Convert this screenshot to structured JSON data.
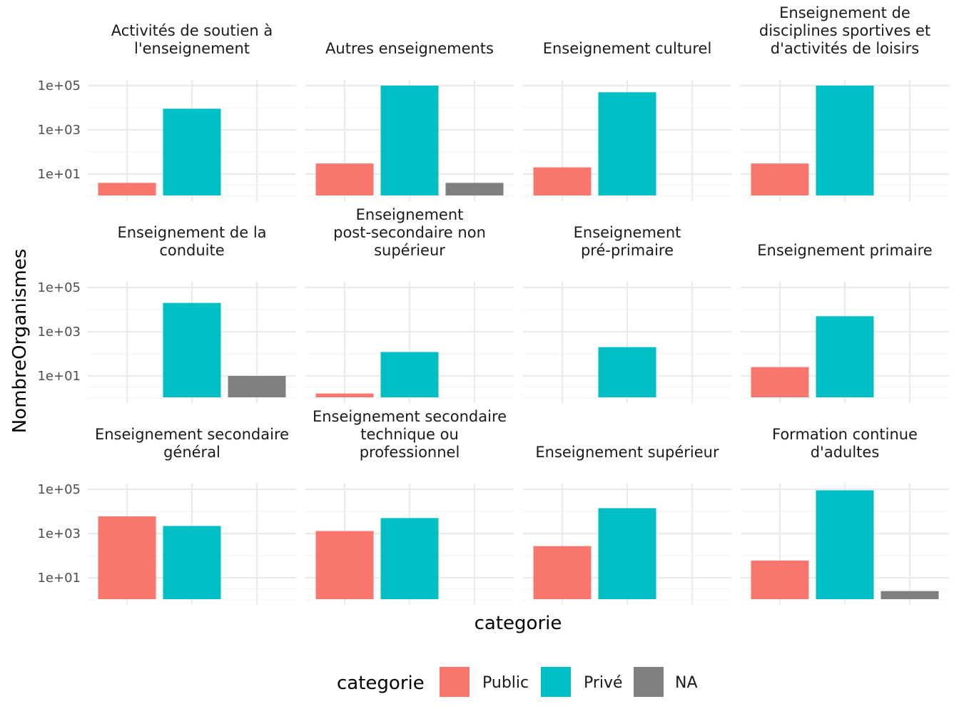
{
  "chart_data": {
    "type": "bar",
    "facet_type": "wrap",
    "ncol": 4,
    "xlabel": "categorie",
    "ylabel": "NombreOrganismes",
    "y_scale": "log10",
    "y_ticks": [
      "1e+01",
      "1e+03",
      "1e+05"
    ],
    "y_tick_values": [
      10,
      1000,
      100000
    ],
    "ylim": [
      1,
      100000
    ],
    "grid": true,
    "x_tick_labels_shown": false,
    "categories": [
      "Public",
      "Privé",
      "NA"
    ],
    "legend": {
      "title": "categorie",
      "position": "bottom",
      "entries": [
        {
          "label": "Public",
          "color": "#F8766D"
        },
        {
          "label": "Privé",
          "color": "#00BFC4"
        },
        {
          "label": "NA",
          "color": "#7F7F7F"
        }
      ]
    },
    "panels": [
      {
        "title_lines": [
          "Activités de soutien à",
          "l'enseignement"
        ],
        "values": [
          4,
          9000,
          null
        ]
      },
      {
        "title_lines": [
          "Autres enseignements"
        ],
        "values": [
          30,
          100000,
          4
        ]
      },
      {
        "title_lines": [
          "Enseignement culturel"
        ],
        "values": [
          20,
          50000,
          null
        ]
      },
      {
        "title_lines": [
          "Enseignement de",
          "disciplines sportives et",
          "d'activités de loisirs"
        ],
        "values": [
          30,
          100000,
          null
        ]
      },
      {
        "title_lines": [
          "Enseignement de la",
          "conduite"
        ],
        "values": [
          null,
          20000,
          10
        ]
      },
      {
        "title_lines": [
          "Enseignement",
          "post-secondaire non",
          "supérieur"
        ],
        "values": [
          1.6,
          120,
          null
        ]
      },
      {
        "title_lines": [
          "Enseignement",
          "pré-primaire"
        ],
        "values": [
          null,
          200,
          null
        ]
      },
      {
        "title_lines": [
          "Enseignement primaire"
        ],
        "values": [
          25,
          5000,
          null
        ]
      },
      {
        "title_lines": [
          "Enseignement secondaire",
          "général"
        ],
        "values": [
          6000,
          2200,
          null
        ]
      },
      {
        "title_lines": [
          "Enseignement secondaire",
          "technique ou",
          "professionnel"
        ],
        "values": [
          1300,
          5000,
          null
        ]
      },
      {
        "title_lines": [
          "Enseignement supérieur"
        ],
        "values": [
          270,
          14000,
          null
        ]
      },
      {
        "title_lines": [
          "Formation continue",
          "d'adultes"
        ],
        "values": [
          60,
          90000,
          2.5
        ]
      }
    ]
  }
}
